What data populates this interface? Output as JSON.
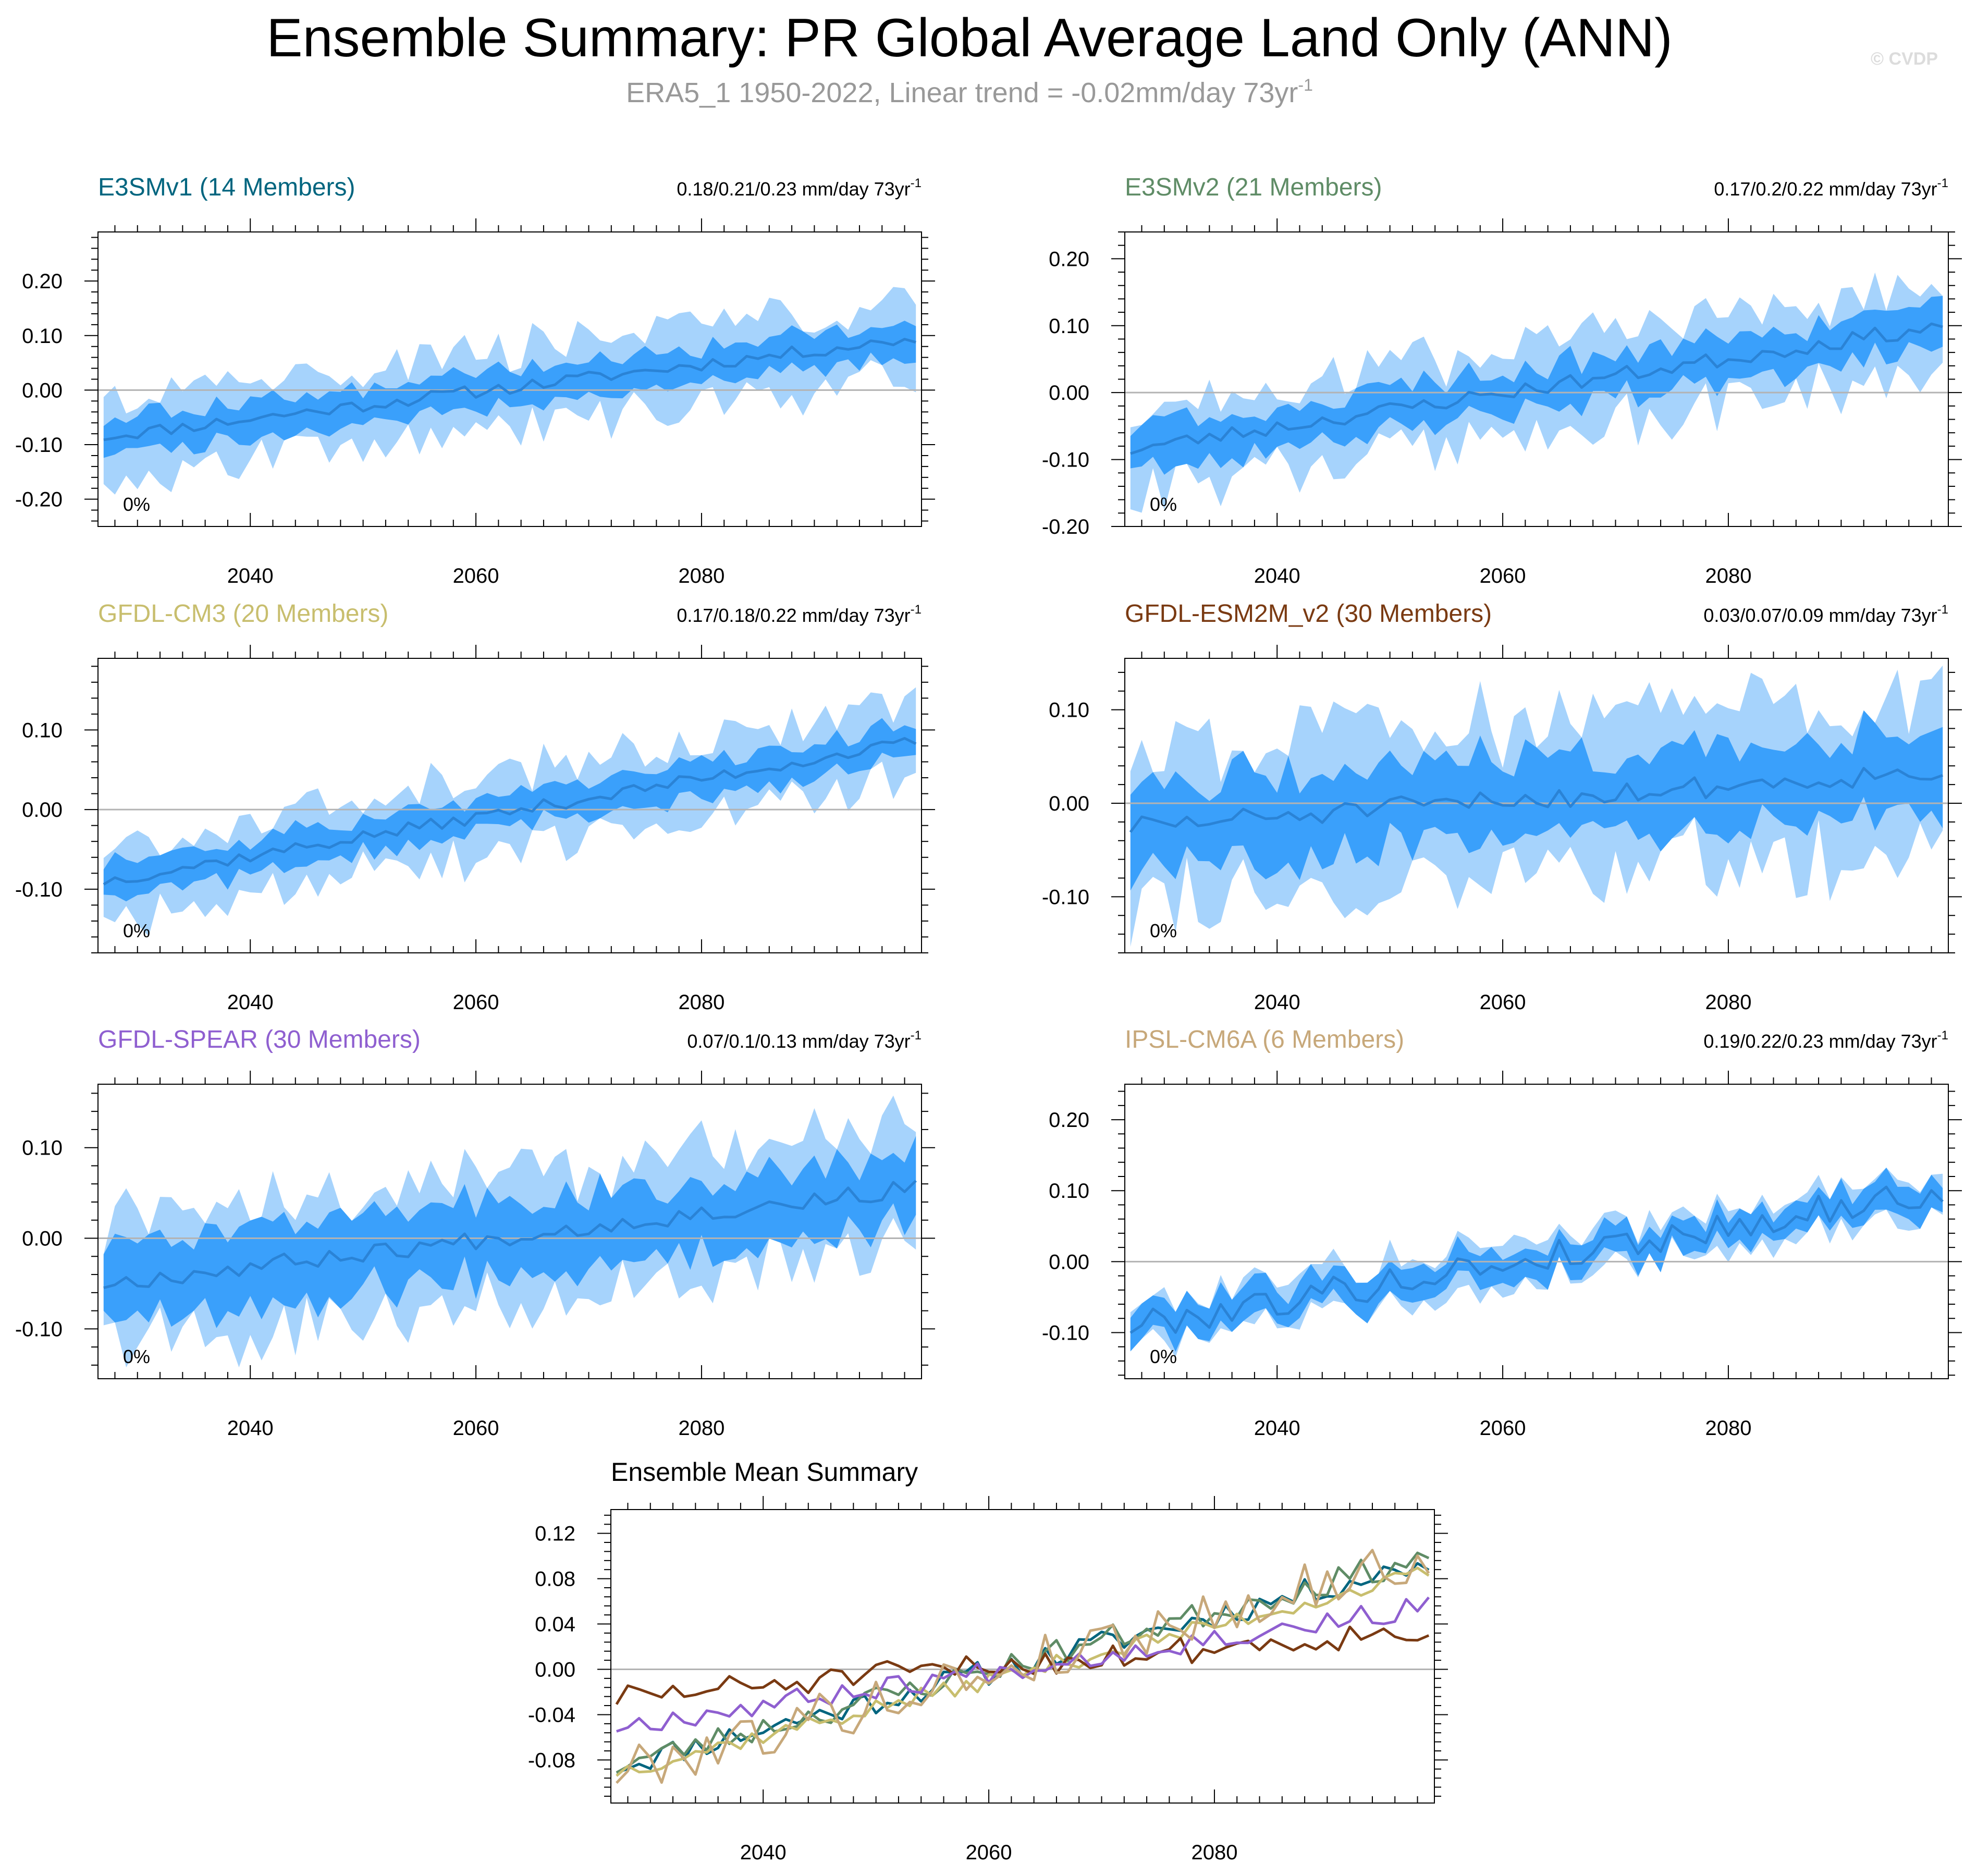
{
  "header": {
    "title": "Ensemble Summary: PR Global Average Land Only (ANN)",
    "subtitle": "ERA5_1 1950-2022, Linear trend = -0.02mm/day 73yr",
    "subtitle_sup": "-1",
    "watermark": "© CVDP"
  },
  "colors": {
    "band_outer": "#a6d3fc",
    "band_inner": "#3aa0fb",
    "mean_line": "#2a83d6",
    "zero_line": "#b3b3b3",
    "axis": "#000000",
    "title_text": "#000000",
    "subtitle_text": "#999999"
  },
  "chart_data": [
    {
      "id": "e3smv1",
      "type": "area",
      "title": "E3SMv1 (14 Members)",
      "title_color": "#00657f",
      "trend": "0.18/0.21/0.23 mm/day 73yr",
      "trend_sup": "-1",
      "pct_label": "0%",
      "xlim": [
        2026.5,
        2099.5
      ],
      "ylim": [
        -0.25,
        0.29
      ],
      "yticks": [
        -0.2,
        -0.1,
        0.0,
        0.1,
        0.2
      ],
      "yticklabels": [
        "-0.20",
        "-0.10",
        "0.00",
        "0.10",
        "0.20"
      ],
      "xticks": [
        2040,
        2060,
        2080
      ],
      "start": -0.085,
      "end": 0.095,
      "amp": 0.012,
      "inner": 0.032,
      "outer": 0.075,
      "seed": 11
    },
    {
      "id": "e3smv2",
      "type": "area",
      "title": "E3SMv2 (21 Members)",
      "title_color": "#5f8c66",
      "trend": "0.17/0.2/0.22 mm/day 73yr",
      "trend_sup": "-1",
      "pct_label": "0%",
      "xlim": [
        2026.5,
        2099.5
      ],
      "ylim": [
        -0.2,
        0.24
      ],
      "yticks": [
        -0.2,
        -0.1,
        0.0,
        0.1,
        0.2
      ],
      "yticklabels": [
        "-0.20",
        "-0.10",
        "0.00",
        "0.10",
        "0.20"
      ],
      "xticks": [
        2040,
        2060,
        2080
      ],
      "start": -0.085,
      "end": 0.1,
      "amp": 0.012,
      "inner": 0.032,
      "outer": 0.07,
      "seed": 23
    },
    {
      "id": "gfdl-cm3",
      "type": "area",
      "title": "GFDL-CM3 (20 Members)",
      "title_color": "#c8be6e",
      "trend": "0.17/0.18/0.22 mm/day 73yr",
      "trend_sup": "-1",
      "pct_label": "0%",
      "xlim": [
        2026.5,
        2099.5
      ],
      "ylim": [
        -0.18,
        0.19
      ],
      "yticks": [
        -0.1,
        0.0,
        0.1
      ],
      "yticklabels": [
        "-0.10",
        "0.00",
        "0.10"
      ],
      "xticks": [
        2040,
        2060,
        2080
      ],
      "start": -0.09,
      "end": 0.085,
      "amp": 0.008,
      "inner": 0.022,
      "outer": 0.05,
      "seed": 37
    },
    {
      "id": "gfdl-esm2m-v2",
      "type": "area",
      "title": "GFDL-ESM2M_v2 (30 Members)",
      "title_color": "#7a3a12",
      "trend": "0.03/0.07/0.09 mm/day 73yr",
      "trend_sup": "-1",
      "pct_label": "0%",
      "xlim": [
        2026.5,
        2099.5
      ],
      "ylim": [
        -0.16,
        0.155
      ],
      "yticks": [
        -0.1,
        0.0,
        0.1
      ],
      "yticklabels": [
        "-0.10",
        "0.00",
        "0.10"
      ],
      "xticks": [
        2040,
        2060,
        2080
      ],
      "start": -0.025,
      "end": 0.035,
      "amp": 0.012,
      "inner": 0.045,
      "outer": 0.085,
      "seed": 51
    },
    {
      "id": "gfdl-spear",
      "type": "area",
      "title": "GFDL-SPEAR (30 Members)",
      "title_color": "#8f5fd0",
      "trend": "0.07/0.1/0.13 mm/day 73yr",
      "trend_sup": "-1",
      "pct_label": "0%",
      "xlim": [
        2026.5,
        2099.5
      ],
      "ylim": [
        -0.155,
        0.17
      ],
      "yticks": [
        -0.1,
        0.0,
        0.1
      ],
      "yticklabels": [
        "-0.10",
        "0.00",
        "0.10"
      ],
      "xticks": [
        2040,
        2060,
        2080
      ],
      "start": -0.05,
      "end": 0.055,
      "amp": 0.01,
      "inner": 0.04,
      "outer": 0.07,
      "seed": 67
    },
    {
      "id": "ipsl-cm6a",
      "type": "area",
      "title": "IPSL-CM6A (6 Members)",
      "title_color": "#c7a87a",
      "trend": "0.19/0.22/0.23 mm/day 73yr",
      "trend_sup": "-1",
      "pct_label": "0%",
      "xlim": [
        2026.5,
        2099.5
      ],
      "ylim": [
        -0.165,
        0.25
      ],
      "yticks": [
        -0.1,
        0.0,
        0.1,
        0.2
      ],
      "yticklabels": [
        "-0.10",
        "0.00",
        "0.10",
        "0.20"
      ],
      "xticks": [
        2040,
        2060,
        2080
      ],
      "start": -0.09,
      "end": 0.1,
      "amp": 0.022,
      "inner": 0.022,
      "outer": 0.03,
      "seed": 79
    },
    {
      "id": "ensemble-mean",
      "type": "line",
      "title": "Ensemble Mean Summary",
      "xlim": [
        2026.5,
        2099.5
      ],
      "ylim": [
        -0.118,
        0.141
      ],
      "yticks": [
        -0.08,
        -0.04,
        0.0,
        0.04,
        0.08,
        0.12
      ],
      "yticklabels": [
        "-0.08",
        "-0.04",
        "0.00",
        "0.04",
        "0.08",
        "0.12"
      ],
      "xticks": [
        2040,
        2060,
        2080
      ],
      "series": [
        {
          "name": "E3SMv1",
          "color": "#00657f",
          "start": -0.085,
          "end": 0.095,
          "amp": 0.012,
          "seed": 11
        },
        {
          "name": "E3SMv2",
          "color": "#5f8c66",
          "start": -0.085,
          "end": 0.1,
          "amp": 0.012,
          "seed": 23
        },
        {
          "name": "GFDL-CM3",
          "color": "#c8be6e",
          "start": -0.09,
          "end": 0.085,
          "amp": 0.008,
          "seed": 37
        },
        {
          "name": "GFDL-ESM2M_v2",
          "color": "#7a3a12",
          "start": -0.025,
          "end": 0.035,
          "amp": 0.012,
          "seed": 51
        },
        {
          "name": "GFDL-SPEAR",
          "color": "#8f5fd0",
          "start": -0.05,
          "end": 0.055,
          "amp": 0.01,
          "seed": 67
        },
        {
          "name": "IPSL-CM6A",
          "color": "#c7a87a",
          "start": -0.09,
          "end": 0.1,
          "amp": 0.022,
          "seed": 79
        }
      ]
    }
  ]
}
